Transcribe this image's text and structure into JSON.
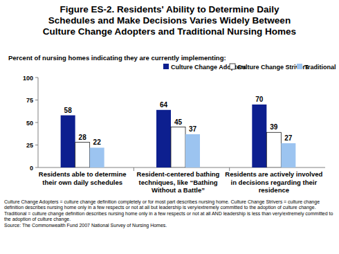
{
  "chart_data": {
    "type": "bar",
    "title": "Figure ES-2. Residents' Ability to Determine Daily Schedules and Make Decisions Varies Widely Between Culture Change Adopters and Traditional Nursing Homes",
    "subtitle": "Percent of nursing homes indicating they are currently implementing:",
    "categories": [
      "Residents able to determine their own daily schedules",
      "Resident-centered bathing techniques, like “Bathing Without a Battle”",
      "Residents are actively involved in decisions regarding their residence"
    ],
    "series": [
      {
        "name": "Culture Change Adopters",
        "color": "#0d1f8f",
        "values": [
          58,
          64,
          70
        ]
      },
      {
        "name": "Culture Change Strivers",
        "color": "#ffffff",
        "values": [
          28,
          45,
          39
        ]
      },
      {
        "name": "Traditional",
        "color": "#9cc4f0",
        "values": [
          22,
          37,
          27
        ]
      }
    ],
    "ylim": [
      0,
      100
    ],
    "yticks": [
      0,
      25,
      50,
      75,
      100
    ],
    "grid": false,
    "legend": "top-right",
    "data_labels": true,
    "footnote": "Culture Change Adopters = culture change definition completely or for most part describes nursing home. Culture Change Strivers = culture change definition describes nursing home only in a few respects or not at all but leadership is very/extremely committed to the adoption of culture change. Traditional = culture change definition describes nursing home only in a few respects or not at all AND leadership is less than very/extremely committed to the adoption of culture change.",
    "source": "Source: The Commonwealth Fund 2007 National Survey of Nursing Homes."
  }
}
